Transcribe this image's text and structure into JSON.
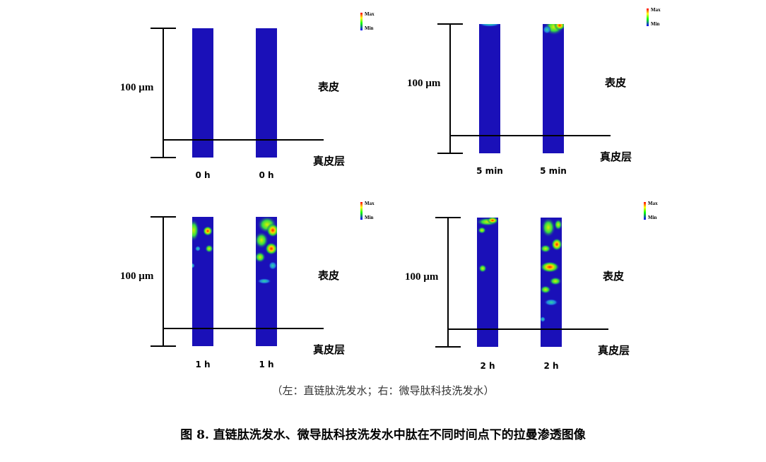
{
  "figure": {
    "title": "图 8. 直链肽洗发水、微导肽科技洗发水中肽在不同时间点下的拉曼渗透图像",
    "caption_note": "（左：直链肽洗发水；右：微导肽科技洗发水）",
    "colors": {
      "background": "#1a10b8",
      "min": "#0000ff",
      "max": "#ff0000",
      "axis": "#000000"
    }
  },
  "legend": {
    "max_label": "Max",
    "min_label": "Min"
  },
  "panels": [
    {
      "scale_label": "100 µm",
      "top_label": "表皮",
      "bottom_label": "真皮层",
      "left_time": "0 h",
      "right_time": "0 h"
    },
    {
      "scale_label": "100 µm",
      "top_label": "表皮",
      "bottom_label": "真皮层",
      "left_time": "5 min",
      "right_time": "5 min"
    },
    {
      "scale_label": "100 µm",
      "top_label": "表皮",
      "bottom_label": "真皮层",
      "left_time": "1 h",
      "right_time": "1 h"
    },
    {
      "scale_label": "100 µm",
      "top_label": "表皮",
      "bottom_label": "真皮层",
      "left_time": "2 h",
      "right_time": "2 h"
    }
  ]
}
